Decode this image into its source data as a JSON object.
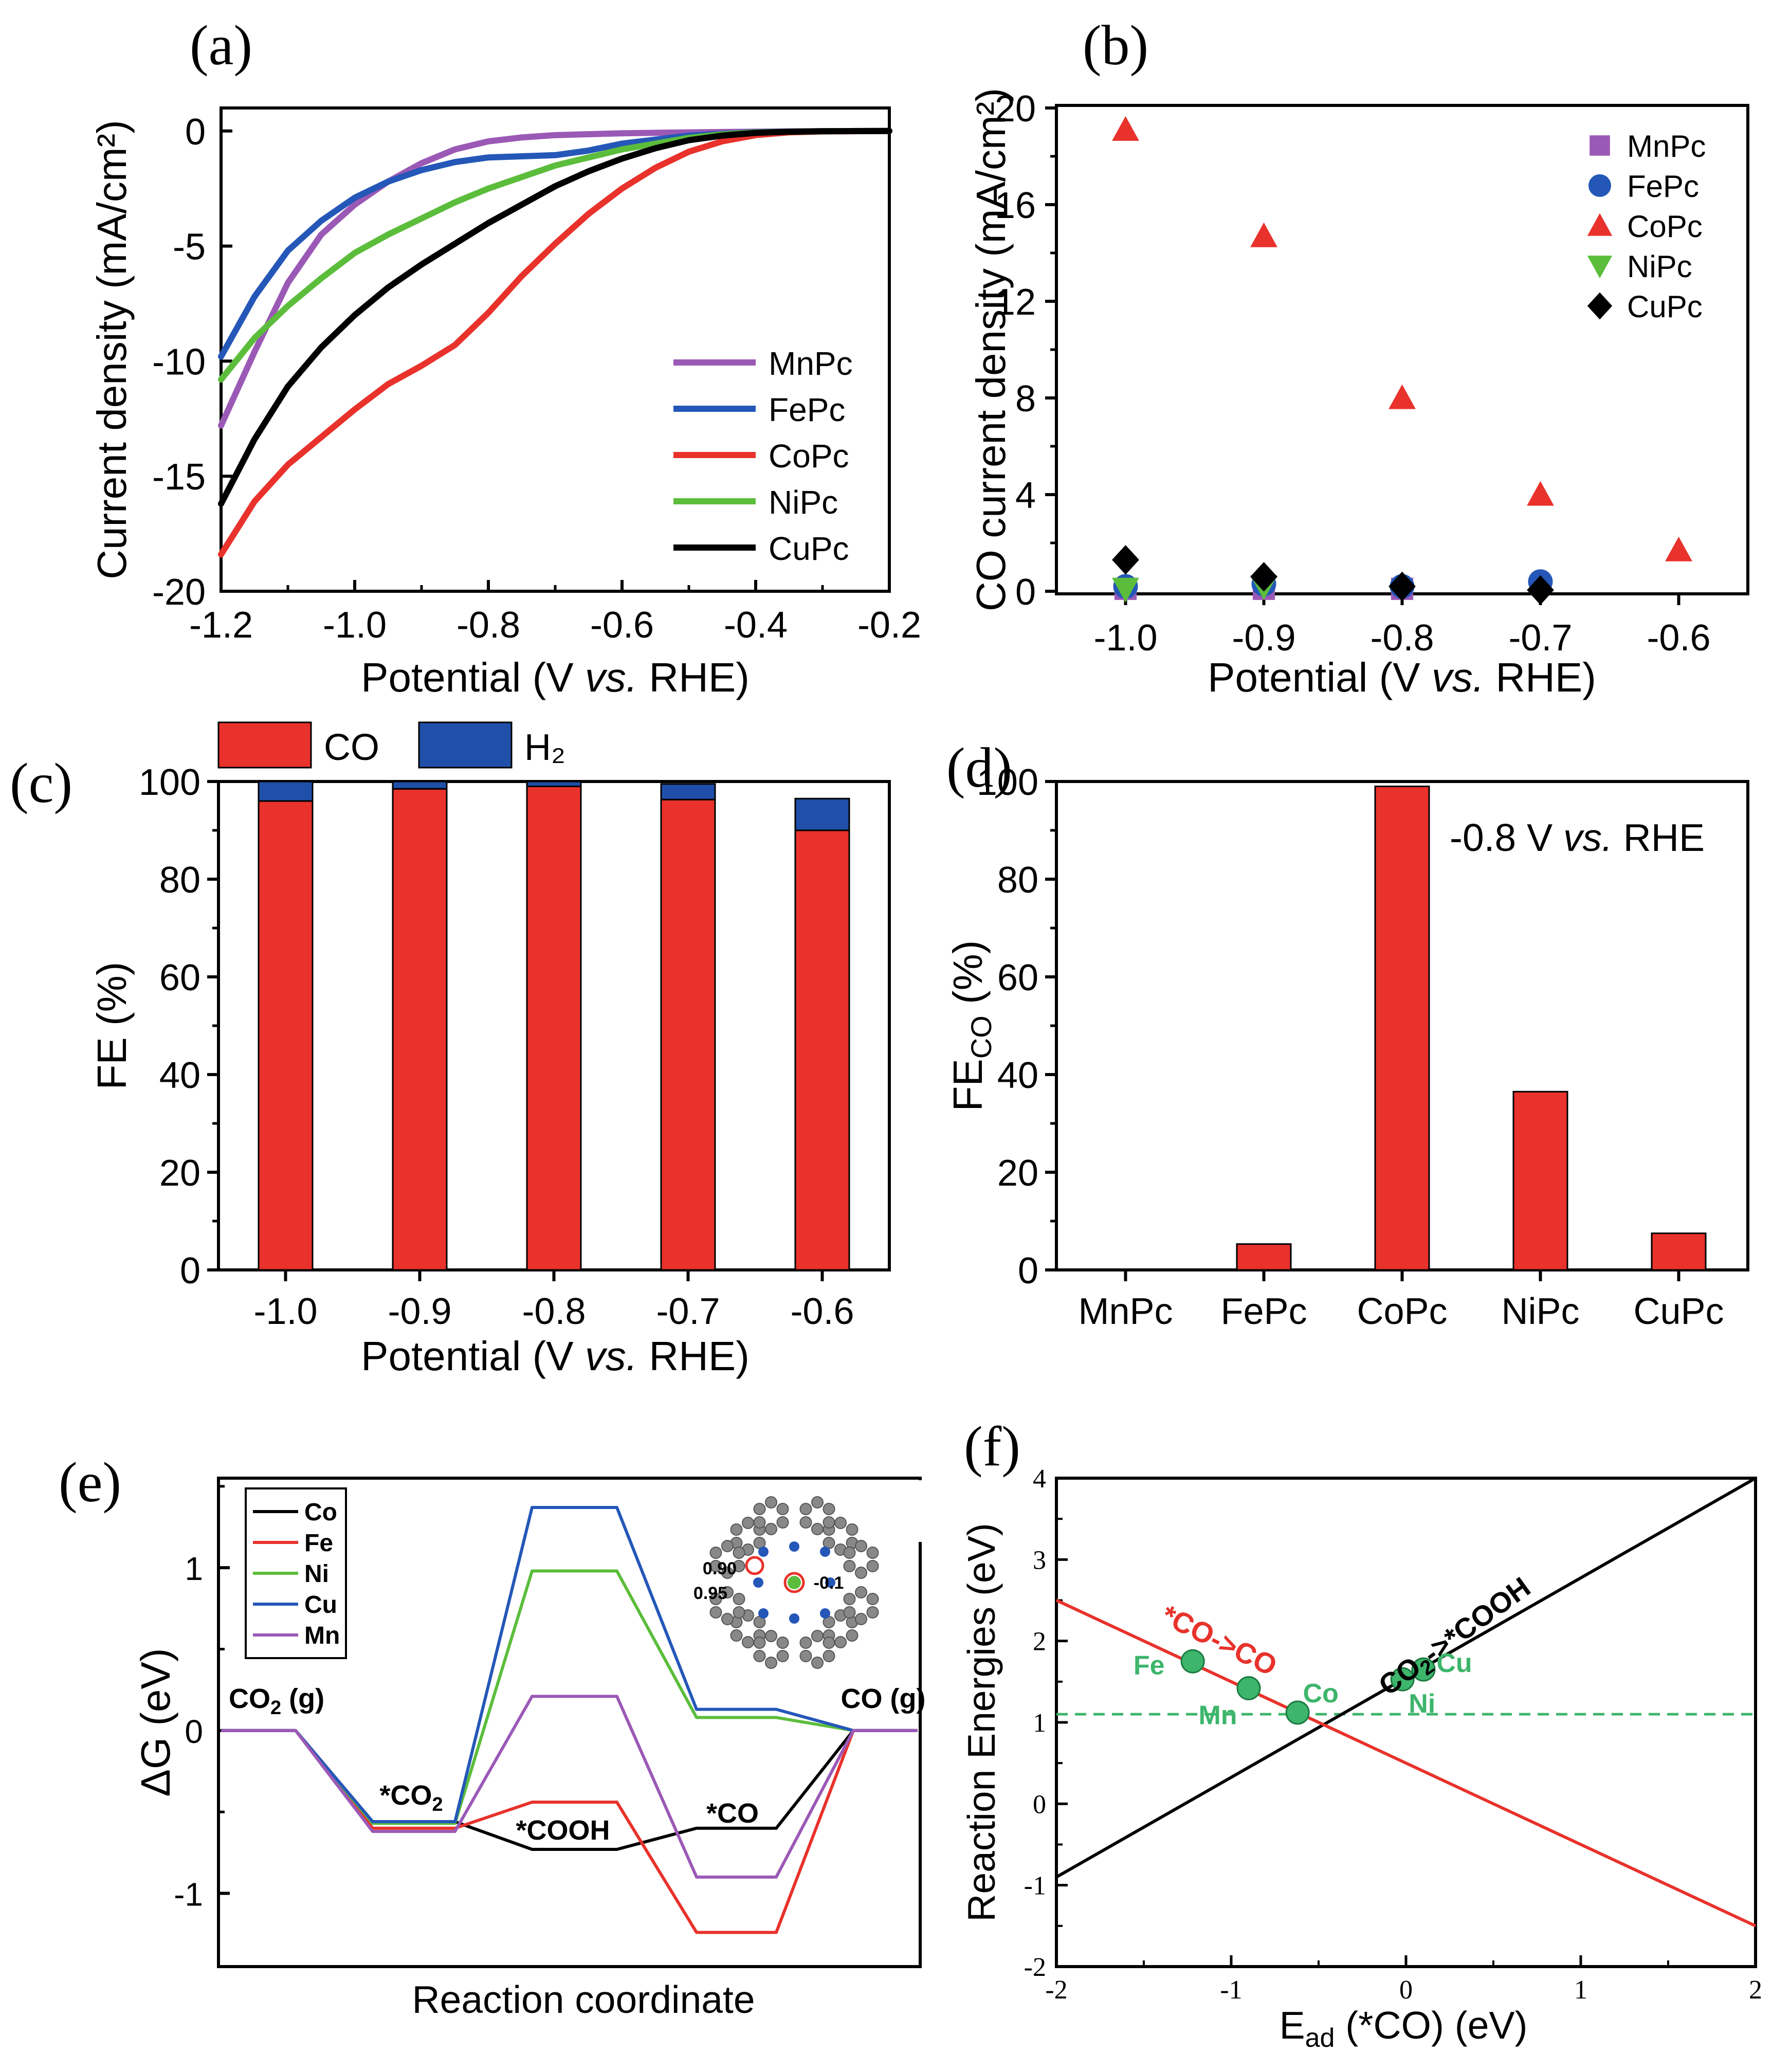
{
  "figure": {
    "colors": {
      "MnPc": "#9b59b6",
      "FePc": "#2457b8",
      "CoPc": "#e8322b",
      "NiPc": "#5bbd3b",
      "CuPc": "#000000",
      "CO": "#e8322b",
      "H2": "#1f4fa8",
      "dot": "#3db56b",
      "dashed": "#3db56b"
    }
  },
  "chart_data": [
    {
      "panel": "(a)",
      "type": "line",
      "xlabel_main": "Potential (V ",
      "xlabel_italic": "vs.",
      "xlabel_tail": " RHE)",
      "ylabel": "Current density (mA/cm²)",
      "xlim": [
        -1.2,
        -0.2
      ],
      "ylim": [
        -20,
        1
      ],
      "xticks": [
        "-1.2",
        "-1.0",
        "-0.8",
        "-0.6",
        "-0.4",
        "-0.2"
      ],
      "xtick_values": [
        -1.2,
        -1.0,
        -0.8,
        -0.6,
        -0.4,
        -0.2
      ],
      "yticks": [
        "0",
        "-5",
        "-10",
        "-15",
        "-20"
      ],
      "ytick_values": [
        0,
        -5,
        -10,
        -15,
        -20
      ],
      "legend": [
        "MnPc",
        "FePc",
        "CoPc",
        "NiPc",
        "CuPc"
      ],
      "series": [
        {
          "name": "MnPc",
          "color": "#9b59b6",
          "x": [
            -1.2,
            -1.15,
            -1.1,
            -1.05,
            -1.0,
            -0.95,
            -0.9,
            -0.85,
            -0.8,
            -0.75,
            -0.7,
            -0.6,
            -0.5,
            -0.4,
            -0.3,
            -0.2
          ],
          "y": [
            -12.8,
            -9.6,
            -6.6,
            -4.5,
            -3.2,
            -2.2,
            -1.4,
            -0.8,
            -0.45,
            -0.28,
            -0.18,
            -0.1,
            -0.06,
            -0.03,
            -0.01,
            0
          ]
        },
        {
          "name": "FePc",
          "color": "#2457b8",
          "x": [
            -1.2,
            -1.15,
            -1.1,
            -1.05,
            -1.0,
            -0.95,
            -0.9,
            -0.85,
            -0.8,
            -0.75,
            -0.7,
            -0.65,
            -0.6,
            -0.5,
            -0.4,
            -0.3,
            -0.2
          ],
          "y": [
            -9.8,
            -7.2,
            -5.2,
            -3.9,
            -2.9,
            -2.2,
            -1.7,
            -1.35,
            -1.15,
            -1.1,
            -1.05,
            -0.85,
            -0.55,
            -0.2,
            -0.05,
            -0.01,
            0
          ]
        },
        {
          "name": "CoPc",
          "color": "#e8322b",
          "x": [
            -1.2,
            -1.15,
            -1.1,
            -1.05,
            -1.0,
            -0.95,
            -0.9,
            -0.85,
            -0.8,
            -0.75,
            -0.7,
            -0.65,
            -0.6,
            -0.55,
            -0.5,
            -0.45,
            -0.4,
            -0.35,
            -0.3,
            -0.2
          ],
          "y": [
            -18.4,
            -16.1,
            -14.5,
            -13.3,
            -12.1,
            -11.0,
            -10.2,
            -9.3,
            -7.9,
            -6.3,
            -4.9,
            -3.6,
            -2.5,
            -1.6,
            -0.9,
            -0.45,
            -0.18,
            -0.06,
            -0.02,
            0
          ]
        },
        {
          "name": "NiPc",
          "color": "#5bbd3b",
          "x": [
            -1.2,
            -1.15,
            -1.1,
            -1.05,
            -1.0,
            -0.95,
            -0.9,
            -0.85,
            -0.8,
            -0.75,
            -0.7,
            -0.6,
            -0.5,
            -0.45,
            -0.4,
            -0.3,
            -0.2
          ],
          "y": [
            -10.8,
            -9.0,
            -7.6,
            -6.4,
            -5.3,
            -4.5,
            -3.8,
            -3.1,
            -2.5,
            -2.0,
            -1.5,
            -0.8,
            -0.3,
            -0.15,
            -0.06,
            -0.01,
            0
          ]
        },
        {
          "name": "CuPc",
          "color": "#000000",
          "x": [
            -1.2,
            -1.15,
            -1.1,
            -1.05,
            -1.0,
            -0.95,
            -0.9,
            -0.85,
            -0.8,
            -0.75,
            -0.7,
            -0.65,
            -0.6,
            -0.55,
            -0.5,
            -0.45,
            -0.4,
            -0.35,
            -0.3,
            -0.2
          ],
          "y": [
            -16.2,
            -13.4,
            -11.1,
            -9.4,
            -8.0,
            -6.8,
            -5.8,
            -4.9,
            -4.0,
            -3.2,
            -2.4,
            -1.75,
            -1.2,
            -0.75,
            -0.4,
            -0.2,
            -0.08,
            -0.03,
            -0.01,
            0
          ]
        }
      ]
    },
    {
      "panel": "(b)",
      "type": "scatter",
      "xlabel_main": "Potential (V ",
      "xlabel_italic": "vs.",
      "xlabel_tail": " RHE)",
      "ylabel": "CO current density (mA/cm²)",
      "xlim": [
        -1.05,
        -0.55
      ],
      "ylim": [
        0,
        20
      ],
      "xticks": [
        "-1.0",
        "-0.9",
        "-0.8",
        "-0.7",
        "-0.6"
      ],
      "xtick_values": [
        -1.0,
        -0.9,
        -0.8,
        -0.7,
        -0.6
      ],
      "yticks": [
        "0",
        "4",
        "8",
        "12",
        "16",
        "20"
      ],
      "ytick_values": [
        0,
        4,
        8,
        12,
        16,
        20
      ],
      "legend": [
        "MnPc",
        "FePc",
        "CoPc",
        "NiPc",
        "CuPc"
      ],
      "series": [
        {
          "name": "MnPc",
          "marker": "square",
          "color": "#9b59b6",
          "x": [
            -1.0,
            -0.9,
            -0.8
          ],
          "y": [
            0.1,
            0.1,
            0.1
          ]
        },
        {
          "name": "FePc",
          "marker": "circle",
          "color": "#2457b8",
          "x": [
            -1.0,
            -0.9,
            -0.8,
            -0.7
          ],
          "y": [
            0.2,
            0.3,
            0.2,
            0.4
          ]
        },
        {
          "name": "CoPc",
          "marker": "triangle-up",
          "color": "#e8322b",
          "x": [
            -1.0,
            -0.9,
            -0.8,
            -0.7,
            -0.6
          ],
          "y": [
            19.1,
            14.7,
            8.0,
            4.0,
            1.7
          ]
        },
        {
          "name": "NiPc",
          "marker": "triangle-down",
          "color": "#5bbd3b",
          "x": [
            -1.0,
            -0.9
          ],
          "y": [
            0.1,
            0.2
          ]
        },
        {
          "name": "CuPc",
          "marker": "diamond",
          "color": "#000000",
          "x": [
            -1.0,
            -0.9,
            -0.8,
            -0.7
          ],
          "y": [
            1.3,
            0.6,
            0.2,
            0.05
          ]
        }
      ]
    },
    {
      "panel": "(c)",
      "type": "bar",
      "stacked": true,
      "xlabel_main": "Potential (V ",
      "xlabel_italic": "vs.",
      "xlabel_tail": " RHE)",
      "ylabel": "FE (%)",
      "categories": [
        "-1.0",
        "-0.9",
        "-0.8",
        "-0.7",
        "-0.6"
      ],
      "ylim": [
        0,
        100
      ],
      "yticks": [
        "0",
        "20",
        "40",
        "60",
        "80",
        "100"
      ],
      "ytick_values": [
        0,
        20,
        40,
        60,
        80,
        100
      ],
      "legend": [
        "CO",
        "H₂"
      ],
      "series": [
        {
          "name": "CO",
          "color": "#e8322b",
          "values": [
            96,
            98.5,
            99,
            96.3,
            90
          ]
        },
        {
          "name": "H2",
          "color": "#1f4fa8",
          "values": [
            4,
            1.5,
            1,
            3.2,
            6.5
          ]
        }
      ]
    },
    {
      "panel": "(d)",
      "type": "bar",
      "ylabel_main": "FE",
      "ylabel_sub": "CO",
      "ylabel_tail": " (%)",
      "annotation_main": "-0.8 V ",
      "annotation_italic": "vs.",
      "annotation_tail": " RHE",
      "categories": [
        "MnPc",
        "FePc",
        "CoPc",
        "NiPc",
        "CuPc"
      ],
      "ylim": [
        0,
        100
      ],
      "yticks": [
        "0",
        "20",
        "40",
        "60",
        "80",
        "100"
      ],
      "ytick_values": [
        0,
        20,
        40,
        60,
        80,
        100
      ],
      "series": [
        {
          "name": "FE_CO",
          "color": "#e8322b",
          "values": [
            0,
            5.3,
            99,
            36.5,
            7.5
          ]
        }
      ]
    },
    {
      "panel": "(e)",
      "type": "line",
      "subtype": "free-energy-diagram",
      "xlabel": "Reaction coordinate",
      "ylabel": "ΔG (eV)",
      "ylim": [
        -1.45,
        1.55
      ],
      "yticks": [
        "1",
        "0",
        "-1"
      ],
      "ytick_values": [
        1,
        0,
        -1
      ],
      "states": [
        "CO₂ (g)",
        "*CO₂",
        "*COOH",
        "*CO",
        "CO (g)"
      ],
      "state_labels": {
        "co2g": "CO",
        "co2g_sub": "2",
        "co2g_tail": " (g)",
        "co2": "*CO",
        "co2_sub": "2",
        "cooh": "*COOH",
        "co": "*CO",
        "cog": "CO (g)"
      },
      "inset_labels": [
        "0.90",
        "0.95",
        "-0.1"
      ],
      "legend": [
        "Co",
        "Fe",
        "Ni",
        "Cu",
        "Mn"
      ],
      "series": [
        {
          "name": "Co",
          "color": "#000000",
          "values": [
            0,
            -0.56,
            -0.73,
            -0.6,
            0
          ]
        },
        {
          "name": "Fe",
          "color": "#e8322b",
          "values": [
            0,
            -0.6,
            -0.44,
            -1.24,
            0
          ]
        },
        {
          "name": "Ni",
          "color": "#5bbd3b",
          "values": [
            0,
            -0.57,
            0.98,
            0.08,
            0
          ]
        },
        {
          "name": "Cu",
          "color": "#2457b8",
          "values": [
            0,
            -0.56,
            1.37,
            0.13,
            0
          ]
        },
        {
          "name": "Mn",
          "color": "#9b59b6",
          "values": [
            0,
            -0.62,
            0.21,
            -0.9,
            0
          ]
        }
      ]
    },
    {
      "panel": "(f)",
      "type": "scatter",
      "xlabel_main": "E",
      "xlabel_sub": "ad",
      "xlabel_tail": " (*CO) (eV)",
      "ylabel": "Reaction Energies (eV)",
      "xlim": [
        -2,
        2
      ],
      "ylim": [
        -2,
        4
      ],
      "xticks": [
        "-2",
        "-1",
        "0",
        "1",
        "2"
      ],
      "xtick_values": [
        -2,
        -1,
        0,
        1,
        2
      ],
      "yticks": [
        "-2",
        "-1",
        "0",
        "1",
        "2",
        "3",
        "4"
      ],
      "ytick_values": [
        -2,
        -1,
        0,
        1,
        2,
        3,
        4
      ],
      "lines": [
        {
          "name": "CO2->*COOH",
          "color": "#000000",
          "x": [
            -2,
            2
          ],
          "y": [
            -0.9,
            4.0
          ]
        },
        {
          "name": "*CO->CO",
          "color": "#e8322b",
          "x": [
            -2,
            2
          ],
          "y": [
            2.5,
            -1.5
          ]
        }
      ],
      "dashed_y": 1.1,
      "line_labels": {
        "black_main": "CO",
        "black_sub": "2",
        "black_tail": "->*COOH",
        "red": "*CO->CO"
      },
      "points": [
        {
          "name": "Fe",
          "x": -1.22,
          "y": 1.75
        },
        {
          "name": "Mn",
          "x": -0.9,
          "y": 1.42
        },
        {
          "name": "Co",
          "x": -0.62,
          "y": 1.12
        },
        {
          "name": "Ni",
          "x": -0.02,
          "y": 1.53
        },
        {
          "name": "Cu",
          "x": 0.1,
          "y": 1.65
        }
      ]
    }
  ]
}
